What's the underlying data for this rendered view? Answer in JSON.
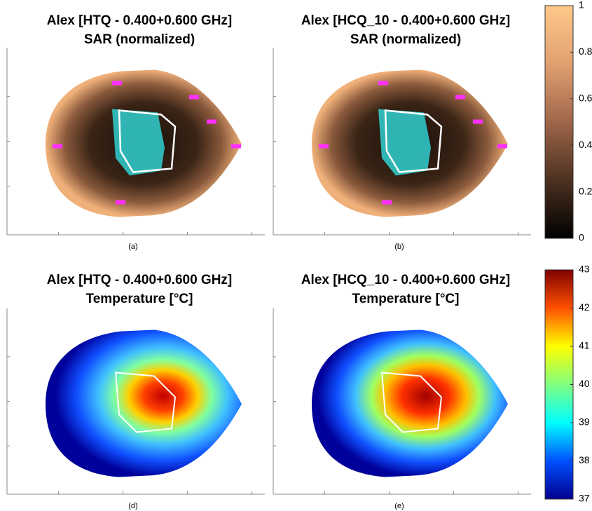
{
  "chart_data": [
    {
      "type": "heatmap",
      "title": [
        "Alex [HTQ - 0.400+0.600 GHz]",
        "SAR (normalized)"
      ],
      "caption": "(a)"
    },
    {
      "type": "heatmap",
      "title": [
        "Alex [HCQ_10 - 0.400+0.600 GHz]",
        "SAR (normalized)"
      ],
      "caption": "(b)"
    },
    {
      "type": "heatmap",
      "title": [
        "Alex [HTQ - 0.400+0.600 GHz]",
        "Temperature [°C]"
      ],
      "caption": "(d)"
    },
    {
      "type": "heatmap",
      "title": [
        "Alex [HCQ_10 - 0.400+0.600 GHz]",
        "Temperature [°C]"
      ],
      "caption": "(e)"
    },
    {
      "type": "colorbar",
      "colors": [
        "#000000",
        "#4d3020",
        "#a0664a",
        "#e0a070",
        "#ffc88a"
      ],
      "ylim": [
        0,
        1
      ],
      "yticks": [
        0,
        0.2,
        0.4,
        0.6,
        0.8,
        1
      ]
    },
    {
      "type": "colorbar",
      "colors": [
        "#00008f",
        "#0050ff",
        "#00ffff",
        "#80ff80",
        "#ffff00",
        "#ff5000",
        "#800000"
      ],
      "ylim": [
        37,
        43
      ],
      "yticks": [
        37,
        38,
        39,
        40,
        41,
        42,
        43
      ]
    }
  ]
}
